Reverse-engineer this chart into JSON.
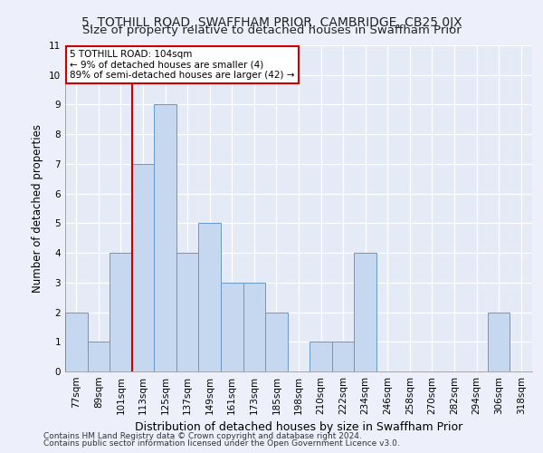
{
  "title": "5, TOTHILL ROAD, SWAFFHAM PRIOR, CAMBRIDGE, CB25 0JX",
  "subtitle": "Size of property relative to detached houses in Swaffham Prior",
  "xlabel": "Distribution of detached houses by size in Swaffham Prior",
  "ylabel": "Number of detached properties",
  "footer1": "Contains HM Land Registry data © Crown copyright and database right 2024.",
  "footer2": "Contains public sector information licensed under the Open Government Licence v3.0.",
  "bar_labels": [
    "77sqm",
    "89sqm",
    "101sqm",
    "113sqm",
    "125sqm",
    "137sqm",
    "149sqm",
    "161sqm",
    "173sqm",
    "185sqm",
    "198sqm",
    "210sqm",
    "222sqm",
    "234sqm",
    "246sqm",
    "258sqm",
    "270sqm",
    "282sqm",
    "294sqm",
    "306sqm",
    "318sqm"
  ],
  "bar_values": [
    2,
    1,
    4,
    7,
    9,
    4,
    5,
    3,
    3,
    2,
    0,
    1,
    1,
    4,
    0,
    0,
    0,
    0,
    0,
    2,
    0
  ],
  "bar_color": "#c5d8f0",
  "bar_edge_color": "#6699cc",
  "property_line_idx": 2,
  "property_line_color": "#cc0000",
  "annotation_line1": "5 TOTHILL ROAD: 104sqm",
  "annotation_line2": "← 9% of detached houses are smaller (4)",
  "annotation_line3": "89% of semi-detached houses are larger (42) →",
  "annotation_box_color": "#ffffff",
  "annotation_box_edge_color": "#cc0000",
  "ylim": [
    0,
    11
  ],
  "yticks": [
    0,
    1,
    2,
    3,
    4,
    5,
    6,
    7,
    8,
    9,
    10,
    11
  ],
  "background_color": "#edf0fb",
  "plot_bg_color": "#e4eaf6",
  "grid_color": "#ffffff",
  "title_fontsize": 10,
  "subtitle_fontsize": 9.5,
  "tick_fontsize": 7.5,
  "ylabel_fontsize": 8.5,
  "xlabel_fontsize": 9,
  "annotation_fontsize": 7.5,
  "footer_fontsize": 6.5
}
